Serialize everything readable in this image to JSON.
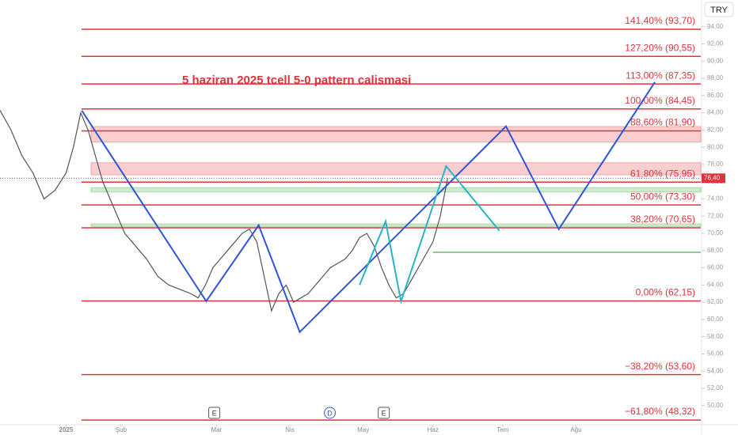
{
  "chart_data": {
    "type": "line",
    "title": "5 haziran 2025 tcell 5-0 pattern calismasi",
    "currency": "TRY",
    "price_tag": {
      "value": 76.4,
      "label": "76,40"
    },
    "xlim": [
      -18,
      173
    ],
    "ylim": [
      47.5,
      97.1
    ],
    "xticks": [
      {
        "value": 0,
        "label": "2025"
      },
      {
        "value": 15,
        "label": "Şub"
      },
      {
        "value": 41,
        "label": "Mar"
      },
      {
        "value": 61,
        "label": "Nis"
      },
      {
        "value": 81,
        "label": "May"
      },
      {
        "value": 100,
        "label": "Haz"
      },
      {
        "value": 119,
        "label": "Tem"
      },
      {
        "value": 139,
        "label": "Ağu"
      }
    ],
    "yticks": [
      {
        "value": 50,
        "label": "50,00"
      },
      {
        "value": 52,
        "label": "52,00"
      },
      {
        "value": 54,
        "label": "54,00"
      },
      {
        "value": 56,
        "label": "56,00"
      },
      {
        "value": 58,
        "label": "58,00"
      },
      {
        "value": 60,
        "label": "60,00"
      },
      {
        "value": 62,
        "label": "62,00"
      },
      {
        "value": 64,
        "label": "64,00"
      },
      {
        "value": 66,
        "label": "66,00"
      },
      {
        "value": 68,
        "label": "68,00"
      },
      {
        "value": 70,
        "label": "70,00"
      },
      {
        "value": 72,
        "label": "72,00"
      },
      {
        "value": 74,
        "label": "74,00"
      },
      {
        "value": 76,
        "label": "76,00"
      },
      {
        "value": 78,
        "label": "78,00"
      },
      {
        "value": 80,
        "label": "80,00"
      },
      {
        "value": 82,
        "label": "82,00"
      },
      {
        "value": 84,
        "label": "84,00"
      },
      {
        "value": 86,
        "label": "86,00"
      },
      {
        "value": 88,
        "label": "88,00"
      },
      {
        "value": 90,
        "label": "90,00"
      },
      {
        "value": 92,
        "label": "92,00"
      },
      {
        "value": 94,
        "label": "94,00"
      }
    ],
    "price": {
      "color": "#555555",
      "x": [
        -18,
        -15,
        -12,
        -9,
        -6,
        -3,
        0,
        2,
        4,
        6,
        8,
        10,
        12,
        14,
        16,
        18,
        20,
        22,
        25,
        28,
        31,
        34,
        36,
        38,
        40,
        42,
        44,
        46,
        48,
        50,
        52,
        54,
        56,
        58,
        60,
        62,
        64,
        66,
        68,
        70,
        72,
        74,
        76,
        78,
        80,
        82,
        84,
        86,
        88,
        90,
        92,
        94,
        96,
        98,
        100,
        102,
        104
      ],
      "values": [
        84.3,
        82,
        79,
        77,
        74,
        75,
        77,
        80,
        84,
        82,
        79,
        76,
        74,
        72,
        70,
        69,
        68,
        67,
        65,
        64,
        63.5,
        63,
        62.5,
        64,
        66,
        67,
        68,
        69,
        70,
        70.5,
        69,
        65,
        61,
        63,
        64,
        62,
        62.5,
        63,
        64,
        65,
        66,
        66.5,
        67,
        68,
        69.5,
        70,
        68.5,
        66,
        64,
        62.5,
        63,
        64.5,
        66,
        67.5,
        69,
        72,
        76.4
      ]
    },
    "levels": [
      {
        "label": "141,40% (93,70)",
        "value": 93.7
      },
      {
        "label": "127,20% (90,55)",
        "value": 90.55
      },
      {
        "label": "113,00% (87,35)",
        "value": 87.35
      },
      {
        "label": "100,00% (84,45)",
        "value": 84.45
      },
      {
        "label": "88,60% (81,90)",
        "value": 81.9
      },
      {
        "label": "61,80% (75,95)",
        "value": 75.95
      },
      {
        "label": "50,00% (73,30)",
        "value": 73.3
      },
      {
        "label": "38,20% (70,65)",
        "value": 70.65
      },
      {
        "label": "0,00% (62,15)",
        "value": 62.15
      },
      {
        "label": "−38,20% (53,60)",
        "value": 53.6
      },
      {
        "label": "−61,80% (48,32)",
        "value": 48.32
      }
    ],
    "level_color": "#e0323b",
    "zones": [
      {
        "color": "#f3a5a8",
        "low": 80.6,
        "high": 82.4
      },
      {
        "color": "#f3a5a8",
        "low": 76.8,
        "high": 78.2
      },
      {
        "color": "#a8d8a8",
        "low": 74.8,
        "high": 75.3
      },
      {
        "color": "#a8d8a8",
        "low": 70.8,
        "high": 71.1
      }
    ],
    "green_line": {
      "color": "#4caf50",
      "x": [
        100,
        173
      ],
      "values": [
        67.8,
        67.8
      ]
    },
    "patterns": [
      {
        "color": "#2f55d4",
        "x": [
          4.3,
          38.2,
          52.5,
          63.7,
          119.9,
          134.3,
          160.5
        ],
        "values": [
          84.26,
          62.12,
          70.94,
          58.54,
          82.43,
          70.48,
          87.57
        ]
      },
      {
        "color": "#26b5c4",
        "x": [
          80,
          87.1,
          91.3,
          103.6,
          118.1
        ],
        "values": [
          64,
          71.4,
          62.1,
          77.8,
          70.3
        ]
      }
    ],
    "events": [
      {
        "label": "E",
        "x": 40.4
      },
      {
        "label": "D",
        "x": 71.9
      },
      {
        "label": "E",
        "x": 86.6
      }
    ]
  }
}
